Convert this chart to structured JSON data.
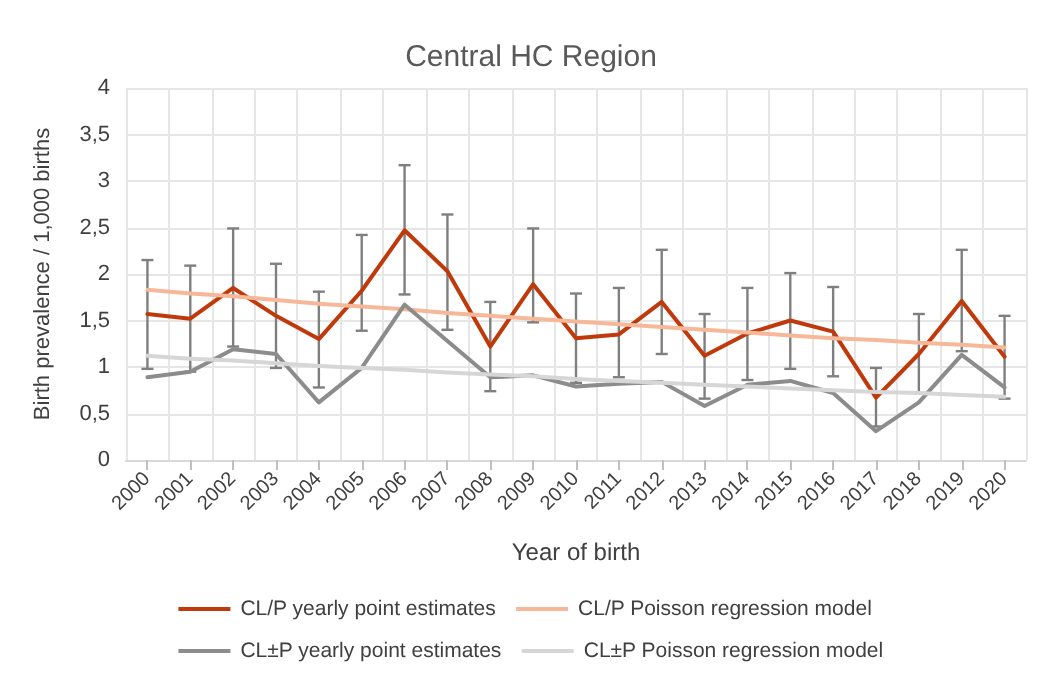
{
  "chart_data": {
    "type": "line",
    "title": "Central HC Region",
    "xlabel": "Year of birth",
    "ylabel": "Birth prevalence / 1,000 births",
    "categories": [
      "2000",
      "2001",
      "2002",
      "2003",
      "2004",
      "2005",
      "2006",
      "2007",
      "2008",
      "2009",
      "2010",
      "2011",
      "2012",
      "2013",
      "2014",
      "2015",
      "2016",
      "2017",
      "2018",
      "2019",
      "2020"
    ],
    "series": [
      {
        "name": "CL/P yearly point estimates",
        "color": "#c0390b",
        "values": [
          1.57,
          1.52,
          1.85,
          1.55,
          1.3,
          1.82,
          2.47,
          2.03,
          1.22,
          1.89,
          1.31,
          1.35,
          1.7,
          1.12,
          1.36,
          1.5,
          1.38,
          0.67,
          1.14,
          1.71,
          1.11
        ],
        "errors": [
          [
            0.98,
            2.15
          ],
          [
            0.95,
            2.09
          ],
          [
            1.22,
            2.49
          ],
          [
            0.99,
            2.11
          ],
          [
            0.78,
            1.81
          ],
          [
            1.39,
            2.42
          ],
          [
            1.78,
            3.17
          ],
          [
            1.4,
            2.64
          ],
          [
            0.74,
            1.7
          ],
          [
            1.48,
            2.49
          ],
          [
            0.83,
            1.79
          ],
          [
            0.89,
            1.85
          ],
          [
            1.14,
            2.26
          ],
          [
            0.66,
            1.57
          ],
          [
            0.86,
            1.85
          ],
          [
            0.98,
            2.01
          ],
          [
            0.9,
            1.86
          ],
          [
            0.36,
            0.99
          ],
          [
            0.72,
            1.57
          ],
          [
            1.17,
            2.26
          ],
          [
            0.66,
            1.55
          ]
        ]
      },
      {
        "name": "CL/P Poisson regression model",
        "color": "#f7b89a",
        "values": [
          1.83,
          1.79,
          1.76,
          1.72,
          1.68,
          1.65,
          1.62,
          1.58,
          1.55,
          1.52,
          1.49,
          1.46,
          1.43,
          1.4,
          1.37,
          1.34,
          1.31,
          1.29,
          1.26,
          1.24,
          1.21
        ]
      },
      {
        "name": "CL±P yearly point estimates",
        "color": "#8c8c8c",
        "values": [
          0.89,
          0.95,
          1.19,
          1.14,
          0.62,
          0.99,
          1.67,
          1.28,
          0.89,
          0.91,
          0.79,
          0.82,
          0.84,
          0.58,
          0.81,
          0.85,
          0.72,
          0.31,
          0.62,
          1.13,
          0.78
        ]
      },
      {
        "name": "CL±P Poisson regression model",
        "color": "#d6d6d6",
        "values": [
          1.12,
          1.09,
          1.07,
          1.04,
          1.01,
          0.99,
          0.97,
          0.94,
          0.92,
          0.9,
          0.87,
          0.85,
          0.83,
          0.81,
          0.79,
          0.77,
          0.75,
          0.73,
          0.72,
          0.7,
          0.68
        ]
      }
    ],
    "ylim": [
      0,
      4
    ],
    "yticks": [
      0,
      {
        "value": 0.5,
        "label": "0,5"
      },
      1,
      {
        "value": 1.5,
        "label": "1,5"
      },
      2,
      {
        "value": 2.5,
        "label": "2,5"
      },
      3,
      {
        "value": 3.5,
        "label": "3,5"
      },
      4
    ],
    "grid": true,
    "legend": "bottom",
    "marker": "none",
    "line_style": "solid"
  }
}
